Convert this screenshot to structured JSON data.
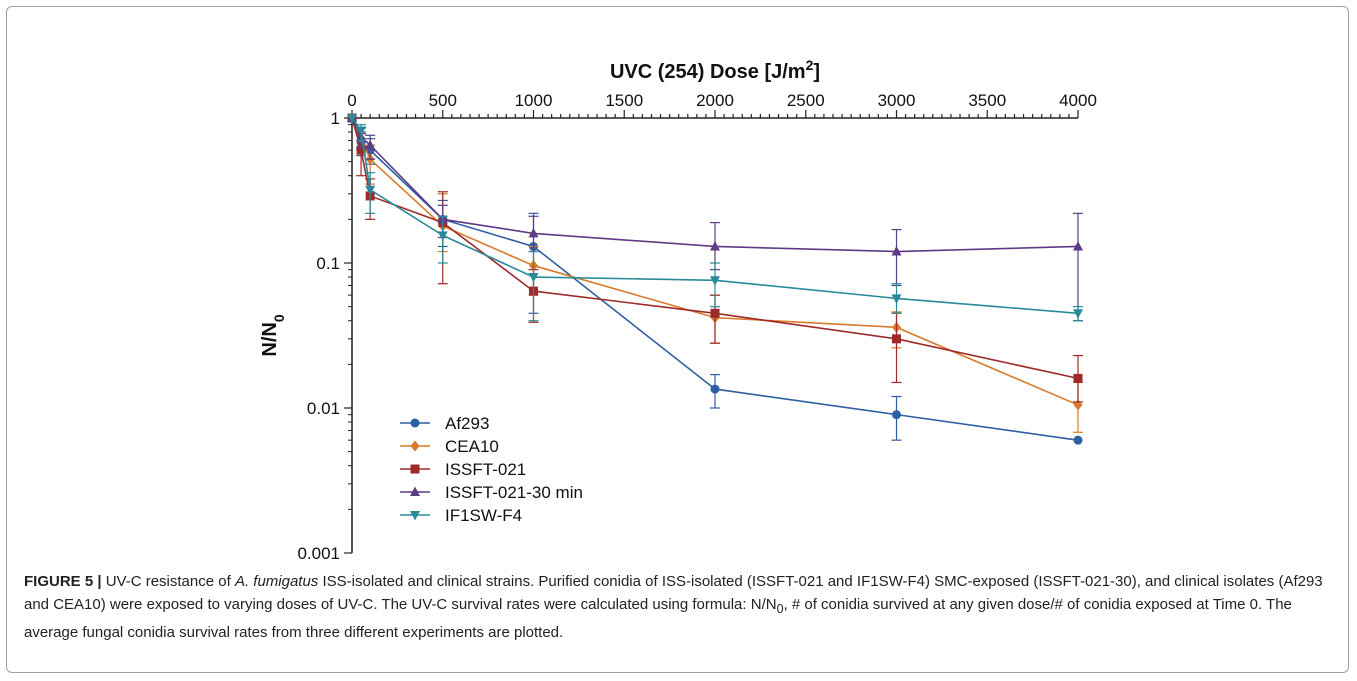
{
  "chart_data": {
    "type": "line",
    "xlabel": "UVC (254) Dose [J/m",
    "xlabel_sup": "2",
    "xlabel_end": "]",
    "ylabel": "N/N",
    "ylabel_sub": "0",
    "x_scale": "linear",
    "y_scale": "log",
    "xlim": [
      0,
      4000
    ],
    "ylim": [
      0.001,
      1
    ],
    "x_axis_position": "top",
    "x_ticks": [
      0,
      500,
      1000,
      1500,
      2000,
      2500,
      3000,
      3500,
      4000
    ],
    "x_tick_labels": [
      "0",
      "500",
      "1000",
      "1500",
      "2000",
      "2500",
      "3000",
      "3500",
      "4000"
    ],
    "y_ticks": [
      1,
      0.1,
      0.01,
      0.001
    ],
    "y_tick_labels": [
      "1",
      "0.1",
      "0.01",
      "0.001"
    ],
    "grid": false,
    "legend_position": "bottom-left",
    "series": [
      {
        "name": "Af293",
        "color": "#2e5fa3",
        "marker": "circle",
        "x": [
          0,
          50,
          100,
          500,
          1000,
          2000,
          3000,
          4000
        ],
        "y": [
          1.0,
          0.68,
          0.6,
          0.2,
          0.13,
          0.0135,
          0.009,
          0.006
        ],
        "err_low": [
          1.0,
          0.55,
          0.48,
          0.13,
          0.045,
          0.01,
          0.006,
          0.006
        ],
        "err_high": [
          1.0,
          0.8,
          0.72,
          0.27,
          0.22,
          0.017,
          0.012,
          0.006
        ]
      },
      {
        "name": "CEA10",
        "color": "#d87a2a",
        "marker": "diamond",
        "x": [
          0,
          50,
          100,
          500,
          1000,
          2000,
          3000,
          4000
        ],
        "y": [
          1.0,
          0.72,
          0.52,
          0.18,
          0.096,
          0.042,
          0.036,
          0.0105
        ],
        "err_low": [
          1.0,
          0.6,
          0.35,
          0.12,
          0.06,
          0.028,
          0.026,
          0.0068
        ],
        "err_high": [
          1.0,
          0.85,
          0.65,
          0.3,
          0.13,
          0.06,
          0.046,
          0.015
        ]
      },
      {
        "name": "ISSFT-021",
        "color": "#9e2a2a",
        "marker": "square",
        "x": [
          0,
          50,
          100,
          500,
          1000,
          2000,
          3000,
          4000
        ],
        "y": [
          1.0,
          0.6,
          0.29,
          0.19,
          0.064,
          0.045,
          0.03,
          0.016
        ],
        "err_low": [
          1.0,
          0.4,
          0.2,
          0.072,
          0.039,
          0.028,
          0.015,
          0.011
        ],
        "err_high": [
          1.0,
          0.78,
          0.38,
          0.31,
          0.09,
          0.06,
          0.045,
          0.023
        ]
      },
      {
        "name": "ISSFT-021-30 min",
        "color": "#5e3b86",
        "marker": "triangle",
        "x": [
          0,
          50,
          100,
          500,
          1000,
          2000,
          3000,
          4000
        ],
        "y": [
          1.0,
          0.74,
          0.65,
          0.2,
          0.16,
          0.13,
          0.12,
          0.13
        ],
        "err_low": [
          1.0,
          0.62,
          0.52,
          0.15,
          0.12,
          0.09,
          0.07,
          0.04
        ],
        "err_high": [
          1.0,
          0.86,
          0.76,
          0.25,
          0.21,
          0.19,
          0.17,
          0.22
        ]
      },
      {
        "name": "IF1SW-F4",
        "color": "#2a8a99",
        "marker": "triangle-down",
        "x": [
          0,
          50,
          100,
          500,
          1000,
          2000,
          3000,
          4000
        ],
        "y": [
          1.0,
          0.82,
          0.32,
          0.155,
          0.08,
          0.076,
          0.057,
          0.045
        ],
        "err_low": [
          1.0,
          0.7,
          0.22,
          0.1,
          0.04,
          0.05,
          0.045,
          0.04
        ],
        "err_high": [
          1.0,
          0.9,
          0.42,
          0.21,
          0.12,
          0.1,
          0.072,
          0.05
        ]
      }
    ]
  },
  "caption": {
    "label": "FIGURE 5 |",
    "text_1": " UV-C resistance of ",
    "species": "A. fumigatus",
    "text_2": " ISS-isolated and clinical strains. Purified conidia of ISS-isolated (ISSFT-021 and IF1SW-F4) SMC-exposed (ISSFT-021-30), and clinical isolates (Af293 and CEA10) were exposed to varying doses of UV-C. The UV-C survival rates were calculated using formula: N/N",
    "sub": "0",
    "text_3": ", # of conidia survived at any given dose/# of conidia exposed at Time 0. The average fungal conidia survival rates from three different experiments are plotted."
  }
}
